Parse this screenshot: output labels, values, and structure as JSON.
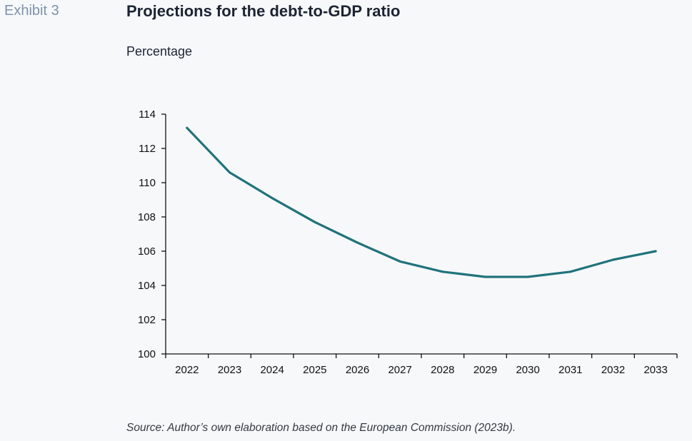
{
  "header": {
    "exhibit": "Exhibit 3",
    "title": "Projections for the debt-to-GDP ratio"
  },
  "footer": {
    "source": "Source: Author’s own elaboration based on the European Commission (2023b)."
  },
  "chart_data": {
    "type": "line",
    "title": "Projections for the debt-to-GDP ratio",
    "ylabel": "Percentage",
    "xlabel": "",
    "x": [
      "2022",
      "2023",
      "2024",
      "2025",
      "2026",
      "2027",
      "2028",
      "2029",
      "2030",
      "2031",
      "2032",
      "2033"
    ],
    "series": [
      {
        "values": [
          113.2,
          110.6,
          109.1,
          107.7,
          106.5,
          105.4,
          104.8,
          104.5,
          104.5,
          104.8,
          105.5,
          106.0
        ]
      }
    ],
    "ylim": [
      100,
      114
    ],
    "yticks": [
      100,
      102,
      104,
      106,
      108,
      110,
      112,
      114
    ],
    "grid": false,
    "legend": "none",
    "line_color": "#1f737b",
    "axis_color": "#111111"
  }
}
